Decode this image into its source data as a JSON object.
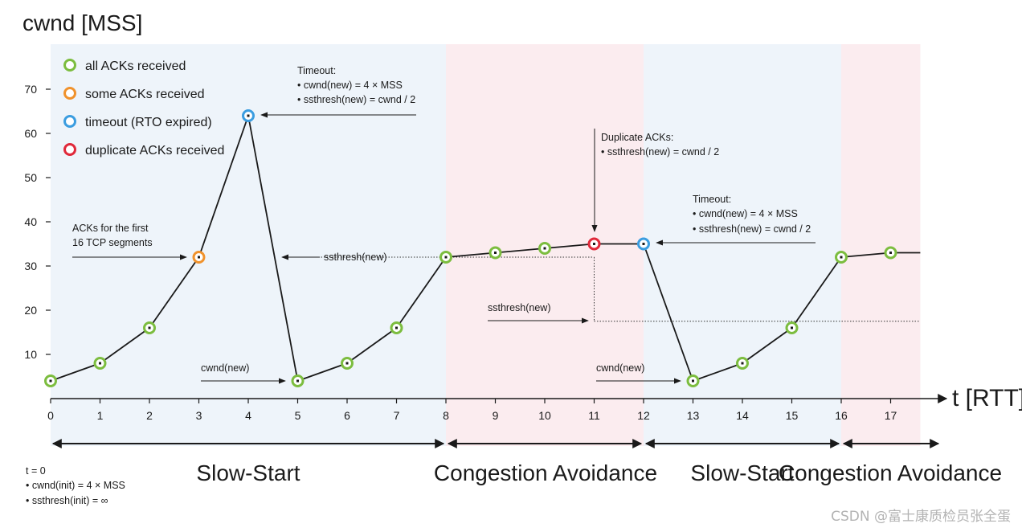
{
  "chart_data": {
    "type": "line",
    "ylabel": "cwnd [MSS]",
    "xlabel": "t [RTT]",
    "x_ticks": [
      "0",
      "1",
      "2",
      "3",
      "4",
      "5",
      "6",
      "7",
      "8",
      "9",
      "10",
      "11",
      "12",
      "13",
      "14",
      "15",
      "16",
      "17"
    ],
    "y_ticks": [
      "10",
      "20",
      "30",
      "40",
      "50",
      "60",
      "70"
    ],
    "xlim": [
      0,
      17.6
    ],
    "ylim": [
      0,
      70
    ],
    "series": [
      {
        "name": "cwnd",
        "x": [
          0,
          1,
          2,
          3,
          4,
          5,
          6,
          7,
          8,
          9,
          10,
          11,
          12,
          13,
          14,
          15,
          16,
          17,
          17.6
        ],
        "y": [
          4,
          8,
          16,
          32,
          64,
          4,
          8,
          16,
          32,
          33,
          34,
          35,
          35,
          4,
          8,
          16,
          32,
          33,
          33
        ]
      }
    ],
    "markers": [
      {
        "x": 0,
        "y": 4,
        "state": "all"
      },
      {
        "x": 1,
        "y": 8,
        "state": "all"
      },
      {
        "x": 2,
        "y": 16,
        "state": "all"
      },
      {
        "x": 3,
        "y": 32,
        "state": "some"
      },
      {
        "x": 4,
        "y": 64,
        "state": "timeout"
      },
      {
        "x": 5,
        "y": 4,
        "state": "all"
      },
      {
        "x": 6,
        "y": 8,
        "state": "all"
      },
      {
        "x": 7,
        "y": 16,
        "state": "all"
      },
      {
        "x": 8,
        "y": 32,
        "state": "all"
      },
      {
        "x": 9,
        "y": 33,
        "state": "all"
      },
      {
        "x": 10,
        "y": 34,
        "state": "all"
      },
      {
        "x": 11,
        "y": 35,
        "state": "dup"
      },
      {
        "x": 12,
        "y": 35,
        "state": "timeout"
      },
      {
        "x": 13,
        "y": 4,
        "state": "all"
      },
      {
        "x": 14,
        "y": 8,
        "state": "all"
      },
      {
        "x": 15,
        "y": 16,
        "state": "all"
      },
      {
        "x": 16,
        "y": 32,
        "state": "all"
      },
      {
        "x": 17,
        "y": 33,
        "state": "all"
      }
    ],
    "ssthresh_lines": [
      {
        "from": 4,
        "to": 11,
        "y": 32
      },
      {
        "from": 11,
        "to": 17.6,
        "y": 17.5
      }
    ],
    "legend": {
      "placement": "top-left",
      "items": [
        {
          "label": "all ACKs received",
          "color": "#7cbd3f"
        },
        {
          "label": "some ACKs received",
          "color": "#f0922c"
        },
        {
          "label": "timeout (RTO expired)",
          "color": "#3b9de0"
        },
        {
          "label": "duplicate ACKs received",
          "color": "#e0293a"
        }
      ]
    },
    "phases": [
      {
        "label": "Slow-Start",
        "from": 0,
        "to": 8,
        "bg": "#eef4fa"
      },
      {
        "label": "Congestion Avoidance",
        "from": 8,
        "to": 12,
        "bg": "#fbecef"
      },
      {
        "label": "Slow-Start",
        "from": 12,
        "to": 16,
        "bg": "#eef4fa"
      },
      {
        "label": "Congestion Avoidance",
        "from": 16,
        "to": 17.6,
        "bg": "#fbecef"
      }
    ],
    "annotations": {
      "timeout1": [
        "Timeout:",
        "• cwnd(new) = 4 × MSS",
        "• ssthresh(new) = cwnd / 2"
      ],
      "dup": [
        "Duplicate ACKs:",
        "• ssthresh(new) = cwnd / 2"
      ],
      "timeout2": [
        "Timeout:",
        "• cwnd(new) = 4 × MSS",
        "• ssthresh(new) = cwnd / 2"
      ],
      "acks_first": [
        "ACKs for the first",
        "16 TCP segments"
      ],
      "ssthresh1": "ssthresh(new)",
      "ssthresh2": "ssthresh(new)",
      "cwnd1": "cwnd(new)",
      "cwnd2": "cwnd(new)",
      "init": [
        "t = 0",
        "• cwnd(init) = 4 × MSS",
        "• ssthresh(init) = ∞"
      ]
    },
    "watermark": "CSDN @富士康质检员张全蛋"
  }
}
